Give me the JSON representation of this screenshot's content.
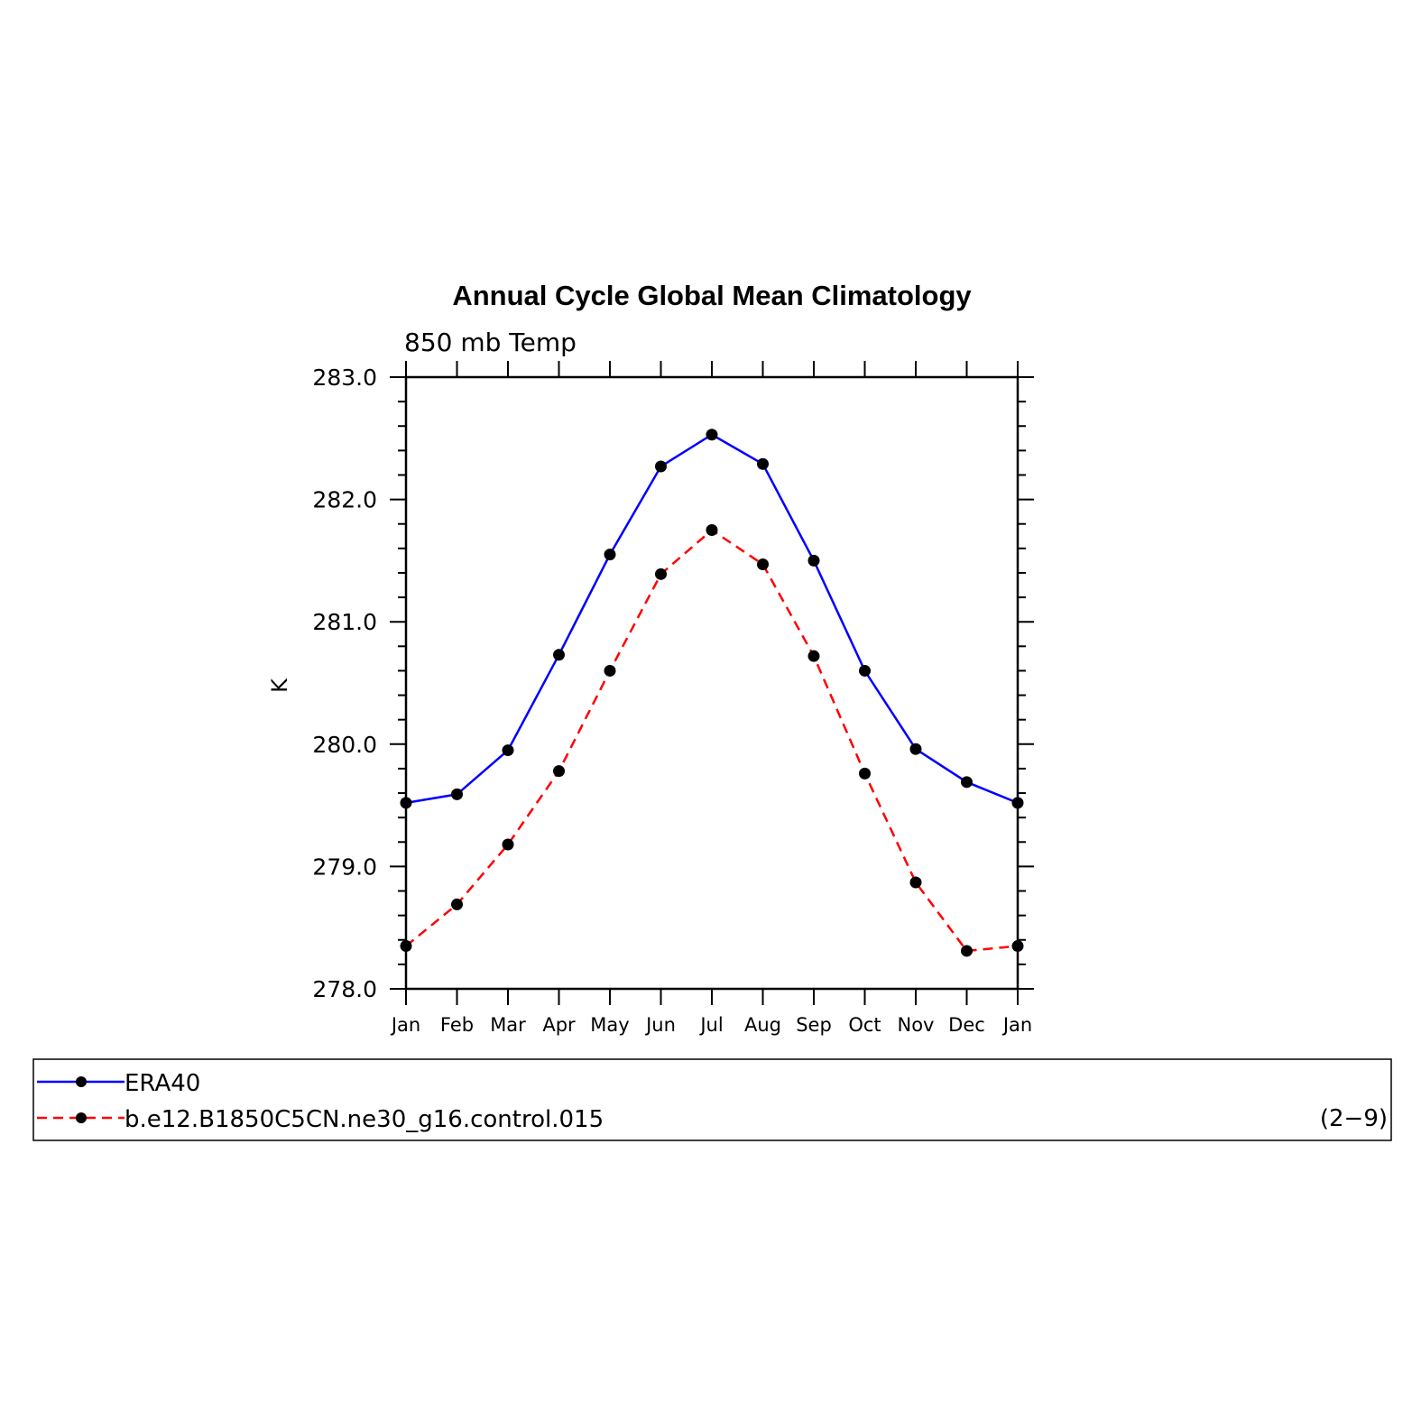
{
  "chart_data": {
    "type": "line",
    "title": "Annual Cycle Global Mean Climatology",
    "subtitle": "850 mb Temp",
    "xlabel": "",
    "ylabel": "K",
    "categories": [
      "Jan",
      "Feb",
      "Mar",
      "Apr",
      "May",
      "Jun",
      "Jul",
      "Aug",
      "Sep",
      "Oct",
      "Nov",
      "Dec",
      "Jan"
    ],
    "ylim": [
      278.0,
      283.0
    ],
    "yticks": [
      "278.0",
      "279.0",
      "280.0",
      "281.0",
      "282.0",
      "283.0"
    ],
    "grid": false,
    "legend_position": "bottom",
    "series": [
      {
        "name": "ERA40",
        "color": "#0000ff",
        "line_style": "solid",
        "values": [
          279.52,
          279.59,
          279.95,
          280.73,
          281.55,
          282.27,
          282.53,
          282.29,
          281.5,
          280.6,
          279.96,
          279.69,
          279.52
        ]
      },
      {
        "name": "b.e12.B1850C5CN.ne30_g16.control.015",
        "color": "#ff0000",
        "line_style": "dashed",
        "values": [
          278.35,
          278.69,
          279.18,
          279.78,
          280.6,
          281.39,
          281.75,
          281.47,
          280.72,
          279.76,
          278.87,
          278.31,
          278.35
        ]
      }
    ],
    "annotation": "(2−9)"
  }
}
